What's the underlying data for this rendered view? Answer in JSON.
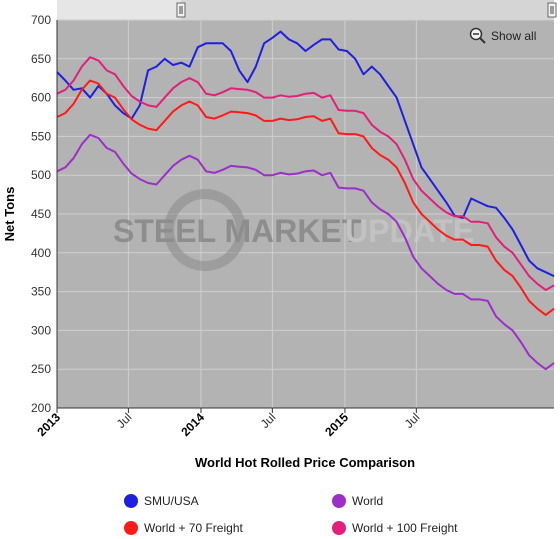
{
  "toolbar": {
    "show_all_label": "Show all"
  },
  "watermark": {
    "brand": "STEEL MARKET",
    "suffix": "UPDATE"
  },
  "colors": {
    "plot_bg": "#b3b3b3",
    "navigator_bg": "#e6e6e6",
    "smu_usa": "#1f1fe0",
    "world": "#9b30c8",
    "world_70": "#ff1a1a",
    "world_100": "#e0207a"
  },
  "chart_data": {
    "type": "line",
    "title": "World Hot Rolled Price Comparison",
    "xlabel": "World Hot Rolled Price Comparison",
    "ylabel": "Net Tons",
    "ylim": [
      200,
      700
    ],
    "yticks": [
      200,
      250,
      300,
      350,
      400,
      450,
      500,
      550,
      600,
      650,
      700
    ],
    "xlim": [
      "2013-01-01",
      "2015-12-31"
    ],
    "xticks": [
      {
        "label": "2013",
        "date": "2013-01-01",
        "major": true
      },
      {
        "label": "Jul",
        "date": "2013-07-01",
        "major": false
      },
      {
        "label": "2014",
        "date": "2014-01-01",
        "major": true
      },
      {
        "label": "Jul",
        "date": "2014-07-01",
        "major": false
      },
      {
        "label": "2015",
        "date": "2015-01-01",
        "major": true
      },
      {
        "label": "Jul",
        "date": "2015-07-01",
        "major": false
      }
    ],
    "grid": true,
    "legend_position": "bottom",
    "series": [
      {
        "name": "SMU/USA",
        "color": "#1f1fe0",
        "points": [
          [
            "2013-01-01",
            633
          ],
          [
            "2013-01-22",
            622
          ],
          [
            "2013-02-12",
            610
          ],
          [
            "2013-03-05",
            612
          ],
          [
            "2013-03-26",
            600
          ],
          [
            "2013-04-16",
            615
          ],
          [
            "2013-05-07",
            605
          ],
          [
            "2013-05-28",
            590
          ],
          [
            "2013-06-18",
            580
          ],
          [
            "2013-07-09",
            573
          ],
          [
            "2013-07-30",
            590
          ],
          [
            "2013-08-20",
            635
          ],
          [
            "2013-09-10",
            640
          ],
          [
            "2013-10-01",
            650
          ],
          [
            "2013-10-22",
            642
          ],
          [
            "2013-11-12",
            645
          ],
          [
            "2013-12-03",
            640
          ],
          [
            "2013-12-24",
            665
          ],
          [
            "2014-01-14",
            670
          ],
          [
            "2014-02-04",
            670
          ],
          [
            "2014-02-25",
            670
          ],
          [
            "2014-03-18",
            660
          ],
          [
            "2014-04-08",
            635
          ],
          [
            "2014-04-29",
            620
          ],
          [
            "2014-05-20",
            640
          ],
          [
            "2014-06-10",
            670
          ],
          [
            "2014-07-01",
            677
          ],
          [
            "2014-07-22",
            685
          ],
          [
            "2014-08-12",
            675
          ],
          [
            "2014-09-02",
            670
          ],
          [
            "2014-09-23",
            660
          ],
          [
            "2014-10-14",
            668
          ],
          [
            "2014-11-04",
            675
          ],
          [
            "2014-11-25",
            675
          ],
          [
            "2014-12-16",
            662
          ],
          [
            "2015-01-06",
            660
          ],
          [
            "2015-01-27",
            650
          ],
          [
            "2015-02-17",
            630
          ],
          [
            "2015-03-10",
            640
          ],
          [
            "2015-03-31",
            630
          ],
          [
            "2015-04-21",
            615
          ],
          [
            "2015-05-12",
            600
          ],
          [
            "2015-06-02",
            570
          ],
          [
            "2015-06-23",
            540
          ],
          [
            "2015-07-14",
            510
          ],
          [
            "2015-08-04",
            495
          ],
          [
            "2015-08-25",
            480
          ],
          [
            "2015-09-15",
            465
          ],
          [
            "2015-10-06",
            448
          ],
          [
            "2015-10-27",
            445
          ],
          [
            "2015-11-17",
            470
          ],
          [
            "2015-12-08",
            465
          ],
          [
            "2015-12-29",
            460
          ]
        ]
      },
      {
        "name": "World + 100 Freight",
        "color": "#e0207a",
        "points": [
          [
            "2013-01-01",
            605
          ],
          [
            "2013-01-22",
            610
          ],
          [
            "2013-02-12",
            622
          ],
          [
            "2013-03-05",
            640
          ],
          [
            "2013-03-26",
            652
          ],
          [
            "2013-04-16",
            648
          ],
          [
            "2013-05-07",
            635
          ],
          [
            "2013-05-28",
            630
          ],
          [
            "2013-06-18",
            615
          ],
          [
            "2013-07-09",
            602
          ],
          [
            "2013-07-30",
            595
          ],
          [
            "2013-08-20",
            590
          ],
          [
            "2013-09-10",
            588
          ],
          [
            "2013-10-01",
            600
          ],
          [
            "2013-10-22",
            612
          ],
          [
            "2013-11-12",
            620
          ],
          [
            "2013-12-03",
            625
          ],
          [
            "2013-12-24",
            620
          ],
          [
            "2014-01-14",
            605
          ],
          [
            "2014-02-04",
            603
          ],
          [
            "2014-02-25",
            607
          ],
          [
            "2014-03-18",
            612
          ],
          [
            "2014-04-08",
            611
          ],
          [
            "2014-04-29",
            610
          ],
          [
            "2014-05-20",
            607
          ],
          [
            "2014-06-10",
            600
          ],
          [
            "2014-07-01",
            600
          ],
          [
            "2014-07-22",
            603
          ],
          [
            "2014-08-12",
            601
          ],
          [
            "2014-09-02",
            602
          ],
          [
            "2014-09-23",
            605
          ],
          [
            "2014-10-14",
            606
          ],
          [
            "2014-11-04",
            600
          ],
          [
            "2014-11-25",
            603
          ],
          [
            "2014-12-16",
            584
          ],
          [
            "2015-01-06",
            583
          ],
          [
            "2015-01-27",
            583
          ],
          [
            "2015-02-17",
            580
          ],
          [
            "2015-03-10",
            565
          ],
          [
            "2015-03-31",
            556
          ],
          [
            "2015-04-21",
            550
          ],
          [
            "2015-05-12",
            540
          ],
          [
            "2015-06-02",
            520
          ],
          [
            "2015-06-23",
            495
          ],
          [
            "2015-07-14",
            480
          ],
          [
            "2015-08-04",
            470
          ],
          [
            "2015-08-25",
            460
          ],
          [
            "2015-09-15",
            452
          ],
          [
            "2015-10-06",
            447
          ],
          [
            "2015-10-27",
            447
          ],
          [
            "2015-11-17",
            440
          ],
          [
            "2015-12-08",
            440
          ],
          [
            "2015-12-29",
            438
          ]
        ]
      },
      {
        "name": "World + 70 Freight",
        "color": "#ff1a1a",
        "points": [
          [
            "2013-01-01",
            575
          ],
          [
            "2013-01-22",
            580
          ],
          [
            "2013-02-12",
            592
          ],
          [
            "2013-03-05",
            610
          ],
          [
            "2013-03-26",
            622
          ],
          [
            "2013-04-16",
            618
          ],
          [
            "2013-05-07",
            605
          ],
          [
            "2013-05-28",
            600
          ],
          [
            "2013-06-18",
            585
          ],
          [
            "2013-07-09",
            572
          ],
          [
            "2013-07-30",
            565
          ],
          [
            "2013-08-20",
            560
          ],
          [
            "2013-09-10",
            558
          ],
          [
            "2013-10-01",
            570
          ],
          [
            "2013-10-22",
            582
          ],
          [
            "2013-11-12",
            590
          ],
          [
            "2013-12-03",
            595
          ],
          [
            "2013-12-24",
            590
          ],
          [
            "2014-01-14",
            575
          ],
          [
            "2014-02-04",
            573
          ],
          [
            "2014-02-25",
            577
          ],
          [
            "2014-03-18",
            582
          ],
          [
            "2014-04-08",
            581
          ],
          [
            "2014-04-29",
            580
          ],
          [
            "2014-05-20",
            577
          ],
          [
            "2014-06-10",
            570
          ],
          [
            "2014-07-01",
            570
          ],
          [
            "2014-07-22",
            573
          ],
          [
            "2014-08-12",
            571
          ],
          [
            "2014-09-02",
            572
          ],
          [
            "2014-09-23",
            575
          ],
          [
            "2014-10-14",
            576
          ],
          [
            "2014-11-04",
            570
          ],
          [
            "2014-11-25",
            573
          ],
          [
            "2014-12-16",
            554
          ],
          [
            "2015-01-06",
            553
          ],
          [
            "2015-01-27",
            553
          ],
          [
            "2015-02-17",
            550
          ],
          [
            "2015-03-10",
            535
          ],
          [
            "2015-03-31",
            526
          ],
          [
            "2015-04-21",
            520
          ],
          [
            "2015-05-12",
            510
          ],
          [
            "2015-06-02",
            490
          ],
          [
            "2015-06-23",
            465
          ],
          [
            "2015-07-14",
            450
          ],
          [
            "2015-08-04",
            440
          ],
          [
            "2015-08-25",
            430
          ],
          [
            "2015-09-15",
            422
          ],
          [
            "2015-10-06",
            417
          ],
          [
            "2015-10-27",
            417
          ],
          [
            "2015-11-17",
            410
          ],
          [
            "2015-12-08",
            410
          ],
          [
            "2015-12-29",
            408
          ]
        ]
      },
      {
        "name": "World",
        "color": "#9b30c8",
        "points": [
          [
            "2013-01-01",
            505
          ],
          [
            "2013-01-22",
            510
          ],
          [
            "2013-02-12",
            522
          ],
          [
            "2013-03-05",
            540
          ],
          [
            "2013-03-26",
            552
          ],
          [
            "2013-04-16",
            548
          ],
          [
            "2013-05-07",
            535
          ],
          [
            "2013-05-28",
            530
          ],
          [
            "2013-06-18",
            515
          ],
          [
            "2013-07-09",
            502
          ],
          [
            "2013-07-30",
            495
          ],
          [
            "2013-08-20",
            490
          ],
          [
            "2013-09-10",
            488
          ],
          [
            "2013-10-01",
            500
          ],
          [
            "2013-10-22",
            512
          ],
          [
            "2013-11-12",
            520
          ],
          [
            "2013-12-03",
            525
          ],
          [
            "2013-12-24",
            520
          ],
          [
            "2014-01-14",
            505
          ],
          [
            "2014-02-04",
            503
          ],
          [
            "2014-02-25",
            507
          ],
          [
            "2014-03-18",
            512
          ],
          [
            "2014-04-08",
            511
          ],
          [
            "2014-04-29",
            510
          ],
          [
            "2014-05-20",
            507
          ],
          [
            "2014-06-10",
            500
          ],
          [
            "2014-07-01",
            500
          ],
          [
            "2014-07-22",
            503
          ],
          [
            "2014-08-12",
            501
          ],
          [
            "2014-09-02",
            502
          ],
          [
            "2014-09-23",
            505
          ],
          [
            "2014-10-14",
            506
          ],
          [
            "2014-11-04",
            500
          ],
          [
            "2014-11-25",
            503
          ],
          [
            "2014-12-16",
            484
          ],
          [
            "2015-01-06",
            483
          ],
          [
            "2015-01-27",
            483
          ],
          [
            "2015-02-17",
            480
          ],
          [
            "2015-03-10",
            465
          ],
          [
            "2015-03-31",
            456
          ],
          [
            "2015-04-21",
            450
          ],
          [
            "2015-05-12",
            440
          ],
          [
            "2015-06-02",
            420
          ],
          [
            "2015-06-23",
            395
          ],
          [
            "2015-07-14",
            380
          ],
          [
            "2015-08-04",
            370
          ],
          [
            "2015-08-25",
            360
          ],
          [
            "2015-09-15",
            352
          ],
          [
            "2015-10-06",
            347
          ],
          [
            "2015-10-27",
            347
          ],
          [
            "2015-11-17",
            340
          ],
          [
            "2015-12-08",
            340
          ],
          [
            "2015-12-29",
            338
          ]
        ]
      }
    ],
    "tail_points": {
      "SMU/USA": [
        [
          "2016-01-19",
          458
        ],
        [
          "2016-02-09",
          445
        ],
        [
          "2016-03-01",
          430
        ],
        [
          "2016-03-22",
          410
        ],
        [
          "2016-04-12",
          390
        ],
        [
          "2016-05-03",
          380
        ],
        [
          "2016-05-24",
          375
        ],
        [
          "2016-06-14",
          370
        ]
      ],
      "World + 100 Freight": [
        [
          "2016-01-19",
          420
        ],
        [
          "2016-02-09",
          408
        ],
        [
          "2016-03-01",
          400
        ],
        [
          "2016-03-22",
          385
        ],
        [
          "2016-04-12",
          370
        ],
        [
          "2016-05-03",
          360
        ],
        [
          "2016-05-24",
          352
        ],
        [
          "2016-06-14",
          358
        ]
      ],
      "World + 70 Freight": [
        [
          "2016-01-19",
          390
        ],
        [
          "2016-02-09",
          378
        ],
        [
          "2016-03-01",
          370
        ],
        [
          "2016-03-22",
          355
        ],
        [
          "2016-04-12",
          338
        ],
        [
          "2016-05-03",
          328
        ],
        [
          "2016-05-24",
          320
        ],
        [
          "2016-06-14",
          328
        ]
      ],
      "World": [
        [
          "2016-01-19",
          318
        ],
        [
          "2016-02-09",
          308
        ],
        [
          "2016-03-01",
          300
        ],
        [
          "2016-03-22",
          285
        ],
        [
          "2016-04-12",
          268
        ],
        [
          "2016-05-03",
          258
        ],
        [
          "2016-05-24",
          250
        ],
        [
          "2016-06-14",
          258
        ]
      ]
    },
    "legend": [
      {
        "name": "SMU/USA",
        "color": "#1f1fe0"
      },
      {
        "name": "World",
        "color": "#9b30c8"
      },
      {
        "name": "World + 70 Freight",
        "color": "#ff1a1a"
      },
      {
        "name": "World + 100 Freight",
        "color": "#e0207a"
      }
    ]
  }
}
